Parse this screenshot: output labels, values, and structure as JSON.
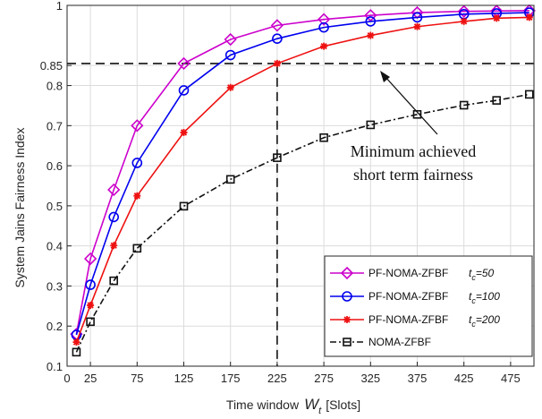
{
  "chart_data": {
    "type": "line",
    "xlabel": "Time window",
    "xlabel_symbol": "W",
    "xlabel_sub": "t",
    "xlabel_unit": "[Slots]",
    "ylabel": "System Jains Fairness Index",
    "xlim": [
      0,
      500
    ],
    "ylim": [
      0.1,
      1.0
    ],
    "x_ticks": [
      0,
      25,
      75,
      125,
      175,
      225,
      275,
      325,
      375,
      425,
      475
    ],
    "y_ticks": [
      0.1,
      0.2,
      0.3,
      0.4,
      0.5,
      0.6,
      0.7,
      0.8,
      0.85,
      1
    ],
    "y_tick_labels": [
      "0.1",
      "0.2",
      "0.3",
      "0.4",
      "0.5",
      "0.6",
      "0.7",
      "0.8",
      "0.85",
      "1"
    ],
    "grid": true,
    "legend_position": "lower-right",
    "threshold": {
      "y": 0.855,
      "x": 225
    },
    "annotation": {
      "line1": "Minimum achieved",
      "line2": "short term fairness"
    },
    "series": [
      {
        "name": "PF-NOMA-ZFBF",
        "param_symbol": "t",
        "param_sub": "c",
        "param_value": "=50",
        "color": "#cc00cc",
        "marker": "diamond",
        "dash": "solid",
        "x": [
          10,
          25,
          50,
          75,
          125,
          175,
          225,
          275,
          325,
          375,
          425,
          460,
          495
        ],
        "y": [
          0.18,
          0.368,
          0.54,
          0.7,
          0.855,
          0.915,
          0.95,
          0.965,
          0.975,
          0.982,
          0.985,
          0.986,
          0.987
        ]
      },
      {
        "name": "PF-NOMA-ZFBF",
        "param_symbol": "t",
        "param_sub": "c",
        "param_value": "=100",
        "color": "#0000ee",
        "marker": "circle",
        "dash": "solid",
        "x": [
          10,
          25,
          50,
          75,
          125,
          175,
          225,
          275,
          325,
          375,
          425,
          460,
          495
        ],
        "y": [
          0.178,
          0.303,
          0.472,
          0.607,
          0.788,
          0.876,
          0.917,
          0.945,
          0.96,
          0.97,
          0.978,
          0.98,
          0.982
        ]
      },
      {
        "name": "PF-NOMA-ZFBF",
        "param_symbol": "t",
        "param_sub": "c",
        "param_value": "=200",
        "color": "#ee1111",
        "marker": "asterisk",
        "dash": "solid",
        "x": [
          10,
          25,
          50,
          75,
          125,
          175,
          225,
          275,
          325,
          375,
          425,
          460,
          495
        ],
        "y": [
          0.16,
          0.252,
          0.401,
          0.525,
          0.683,
          0.795,
          0.855,
          0.898,
          0.925,
          0.947,
          0.96,
          0.968,
          0.97
        ]
      },
      {
        "name": "NOMA-ZFBF",
        "param_symbol": "",
        "param_sub": "",
        "param_value": "",
        "color": "#111111",
        "marker": "square",
        "dash": "dashdot",
        "x": [
          10,
          25,
          50,
          75,
          125,
          175,
          225,
          275,
          325,
          375,
          425,
          460,
          495
        ],
        "y": [
          0.135,
          0.211,
          0.313,
          0.394,
          0.499,
          0.566,
          0.62,
          0.67,
          0.702,
          0.728,
          0.751,
          0.763,
          0.778
        ]
      }
    ]
  }
}
